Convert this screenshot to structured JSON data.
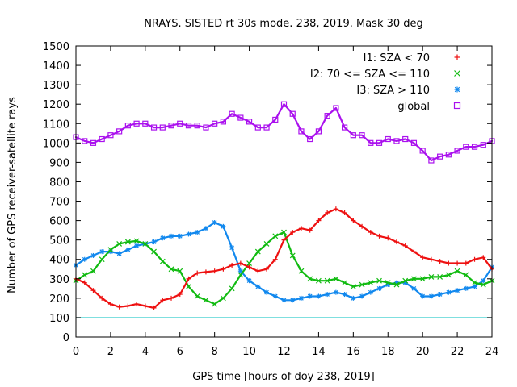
{
  "chart_data": {
    "type": "scatter",
    "title": "NRAYS. SISTED rt 30s mode. 238, 2019. Mask 30 deg",
    "xlabel": "GPS time [hours of doy 238, 2019]",
    "ylabel": "Number of GPS receiver-satellite rays",
    "xlim": [
      0,
      24
    ],
    "ylim": [
      0,
      1500
    ],
    "x_ticks": [
      "0",
      "2",
      "4",
      "6",
      "8",
      "10",
      "12",
      "14",
      "16",
      "18",
      "20",
      "22",
      "24"
    ],
    "y_ticks": [
      "0",
      "100",
      "200",
      "300",
      "400",
      "500",
      "600",
      "700",
      "800",
      "900",
      "1000",
      "1100",
      "1200",
      "1300",
      "1400",
      "1500"
    ],
    "legend_position": "top-right",
    "reference_line": {
      "y": 100,
      "color": "#33cccc"
    },
    "series": [
      {
        "name": "I1: SZA < 70",
        "marker": "+",
        "color": "#ee1111",
        "x": [
          0,
          0.5,
          1,
          1.5,
          2,
          2.5,
          3,
          3.5,
          4,
          4.5,
          5,
          5.5,
          6,
          6.5,
          7,
          7.5,
          8,
          8.5,
          9,
          9.5,
          10,
          10.5,
          11,
          11.5,
          12,
          12.5,
          13,
          13.5,
          14,
          14.5,
          15,
          15.5,
          16,
          16.5,
          17,
          17.5,
          18,
          18.5,
          19,
          19.5,
          20,
          20.5,
          21,
          21.5,
          22,
          22.5,
          23,
          23.5,
          24
        ],
        "y": [
          300,
          280,
          240,
          200,
          170,
          155,
          160,
          170,
          160,
          150,
          190,
          200,
          220,
          300,
          330,
          335,
          340,
          350,
          370,
          380,
          360,
          340,
          350,
          400,
          500,
          540,
          560,
          550,
          600,
          640,
          660,
          640,
          600,
          570,
          540,
          520,
          510,
          490,
          470,
          440,
          410,
          400,
          390,
          380,
          380,
          380,
          400,
          410,
          350
        ]
      },
      {
        "name": "I2: 70 <= SZA <= 110",
        "marker": "x",
        "color": "#11bb11",
        "x": [
          0,
          0.5,
          1,
          1.5,
          2,
          2.5,
          3,
          3.5,
          4,
          4.5,
          5,
          5.5,
          6,
          6.5,
          7,
          7.5,
          8,
          8.5,
          9,
          9.5,
          10,
          10.5,
          11,
          11.5,
          12,
          12.5,
          13,
          13.5,
          14,
          14.5,
          15,
          15.5,
          16,
          16.5,
          17,
          17.5,
          18,
          18.5,
          19,
          19.5,
          20,
          20.5,
          21,
          21.5,
          22,
          22.5,
          23,
          23.5,
          24
        ],
        "y": [
          290,
          320,
          340,
          400,
          450,
          480,
          490,
          495,
          480,
          440,
          390,
          350,
          340,
          260,
          210,
          190,
          170,
          200,
          250,
          320,
          380,
          440,
          480,
          520,
          540,
          420,
          340,
          300,
          290,
          290,
          300,
          280,
          260,
          270,
          280,
          290,
          280,
          270,
          290,
          300,
          300,
          310,
          310,
          320,
          340,
          320,
          280,
          270,
          290
        ]
      },
      {
        "name": "I3: SZA > 110",
        "marker": "*",
        "color": "#1188ee",
        "x": [
          0,
          0.5,
          1,
          1.5,
          2,
          2.5,
          3,
          3.5,
          4,
          4.5,
          5,
          5.5,
          6,
          6.5,
          7,
          7.5,
          8,
          8.5,
          9,
          9.5,
          10,
          10.5,
          11,
          11.5,
          12,
          12.5,
          13,
          13.5,
          14,
          14.5,
          15,
          15.5,
          16,
          16.5,
          17,
          17.5,
          18,
          18.5,
          19,
          19.5,
          20,
          20.5,
          21,
          21.5,
          22,
          22.5,
          23,
          23.5,
          24
        ],
        "y": [
          370,
          400,
          420,
          440,
          440,
          430,
          450,
          470,
          480,
          490,
          510,
          520,
          520,
          530,
          540,
          560,
          590,
          570,
          460,
          340,
          290,
          260,
          230,
          210,
          190,
          190,
          200,
          210,
          210,
          220,
          230,
          220,
          200,
          210,
          230,
          250,
          270,
          280,
          280,
          250,
          210,
          210,
          220,
          230,
          240,
          250,
          260,
          290,
          360
        ]
      },
      {
        "name": "global",
        "marker": "square",
        "color": "#aa11ee",
        "x": [
          0,
          0.5,
          1,
          1.5,
          2,
          2.5,
          3,
          3.5,
          4,
          4.5,
          5,
          5.5,
          6,
          6.5,
          7,
          7.5,
          8,
          8.5,
          9,
          9.5,
          10,
          10.5,
          11,
          11.5,
          12,
          12.5,
          13,
          13.5,
          14,
          14.5,
          15,
          15.5,
          16,
          16.5,
          17,
          17.5,
          18,
          18.5,
          19,
          19.5,
          20,
          20.5,
          21,
          21.5,
          22,
          22.5,
          23,
          23.5,
          24
        ],
        "y": [
          1030,
          1010,
          1000,
          1020,
          1040,
          1060,
          1090,
          1100,
          1100,
          1080,
          1080,
          1090,
          1100,
          1090,
          1090,
          1080,
          1100,
          1110,
          1150,
          1130,
          1110,
          1080,
          1080,
          1120,
          1200,
          1150,
          1060,
          1020,
          1060,
          1140,
          1180,
          1080,
          1040,
          1040,
          1000,
          1000,
          1020,
          1010,
          1020,
          1000,
          960,
          910,
          930,
          940,
          960,
          980,
          980,
          990,
          1010
        ]
      }
    ]
  }
}
